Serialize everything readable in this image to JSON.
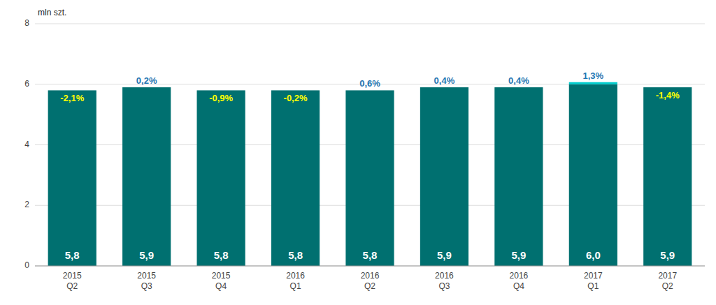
{
  "chart_data": {
    "type": "bar",
    "ylabel": "mln szt.",
    "categories": [
      "2015\nQ2",
      "2015\nQ3",
      "2015\nQ4",
      "2016\nQ1",
      "2016\nQ2",
      "2016\nQ3",
      "2016\nQ4",
      "2017\nQ1",
      "2017\nQ2"
    ],
    "series": [
      {
        "color": "#007070",
        "values": [
          5.8,
          5.9,
          5.8,
          5.8,
          5.8,
          5.9,
          5.9,
          6.0,
          5.9
        ],
        "value_labels": [
          "5,8",
          "5,9",
          "5,8",
          "5,8",
          "5,8",
          "5,9",
          "5,9",
          "6,0",
          "5,9"
        ]
      },
      {
        "color": "#00CCCC",
        "values": [
          0,
          0,
          0,
          0,
          0,
          0,
          0,
          0.07,
          0
        ]
      }
    ],
    "stacked": true,
    "annotations": [
      {
        "text": "-2,1%",
        "color": "#FFFF00",
        "position": "inside"
      },
      {
        "text": "0,2%",
        "color": "#1F77B4",
        "position": "above"
      },
      {
        "text": "-0,9%",
        "color": "#FFFF00",
        "position": "inside"
      },
      {
        "text": "-0,2%",
        "color": "#FFFF00",
        "position": "inside"
      },
      {
        "text": "0,6%",
        "color": "#1F77B4",
        "position": "above"
      },
      {
        "text": "0,4%",
        "color": "#1F77B4",
        "position": "above"
      },
      {
        "text": "0,4%",
        "color": "#1F77B4",
        "position": "above"
      },
      {
        "text": "1,3%",
        "color": "#1F77B4",
        "position": "above"
      },
      {
        "text": "-1,4%",
        "color": "#FFFF00",
        "position": "inside"
      }
    ],
    "ylim": [
      0,
      8
    ],
    "yticks": [
      0,
      2,
      4,
      6,
      8
    ],
    "grid": true
  }
}
